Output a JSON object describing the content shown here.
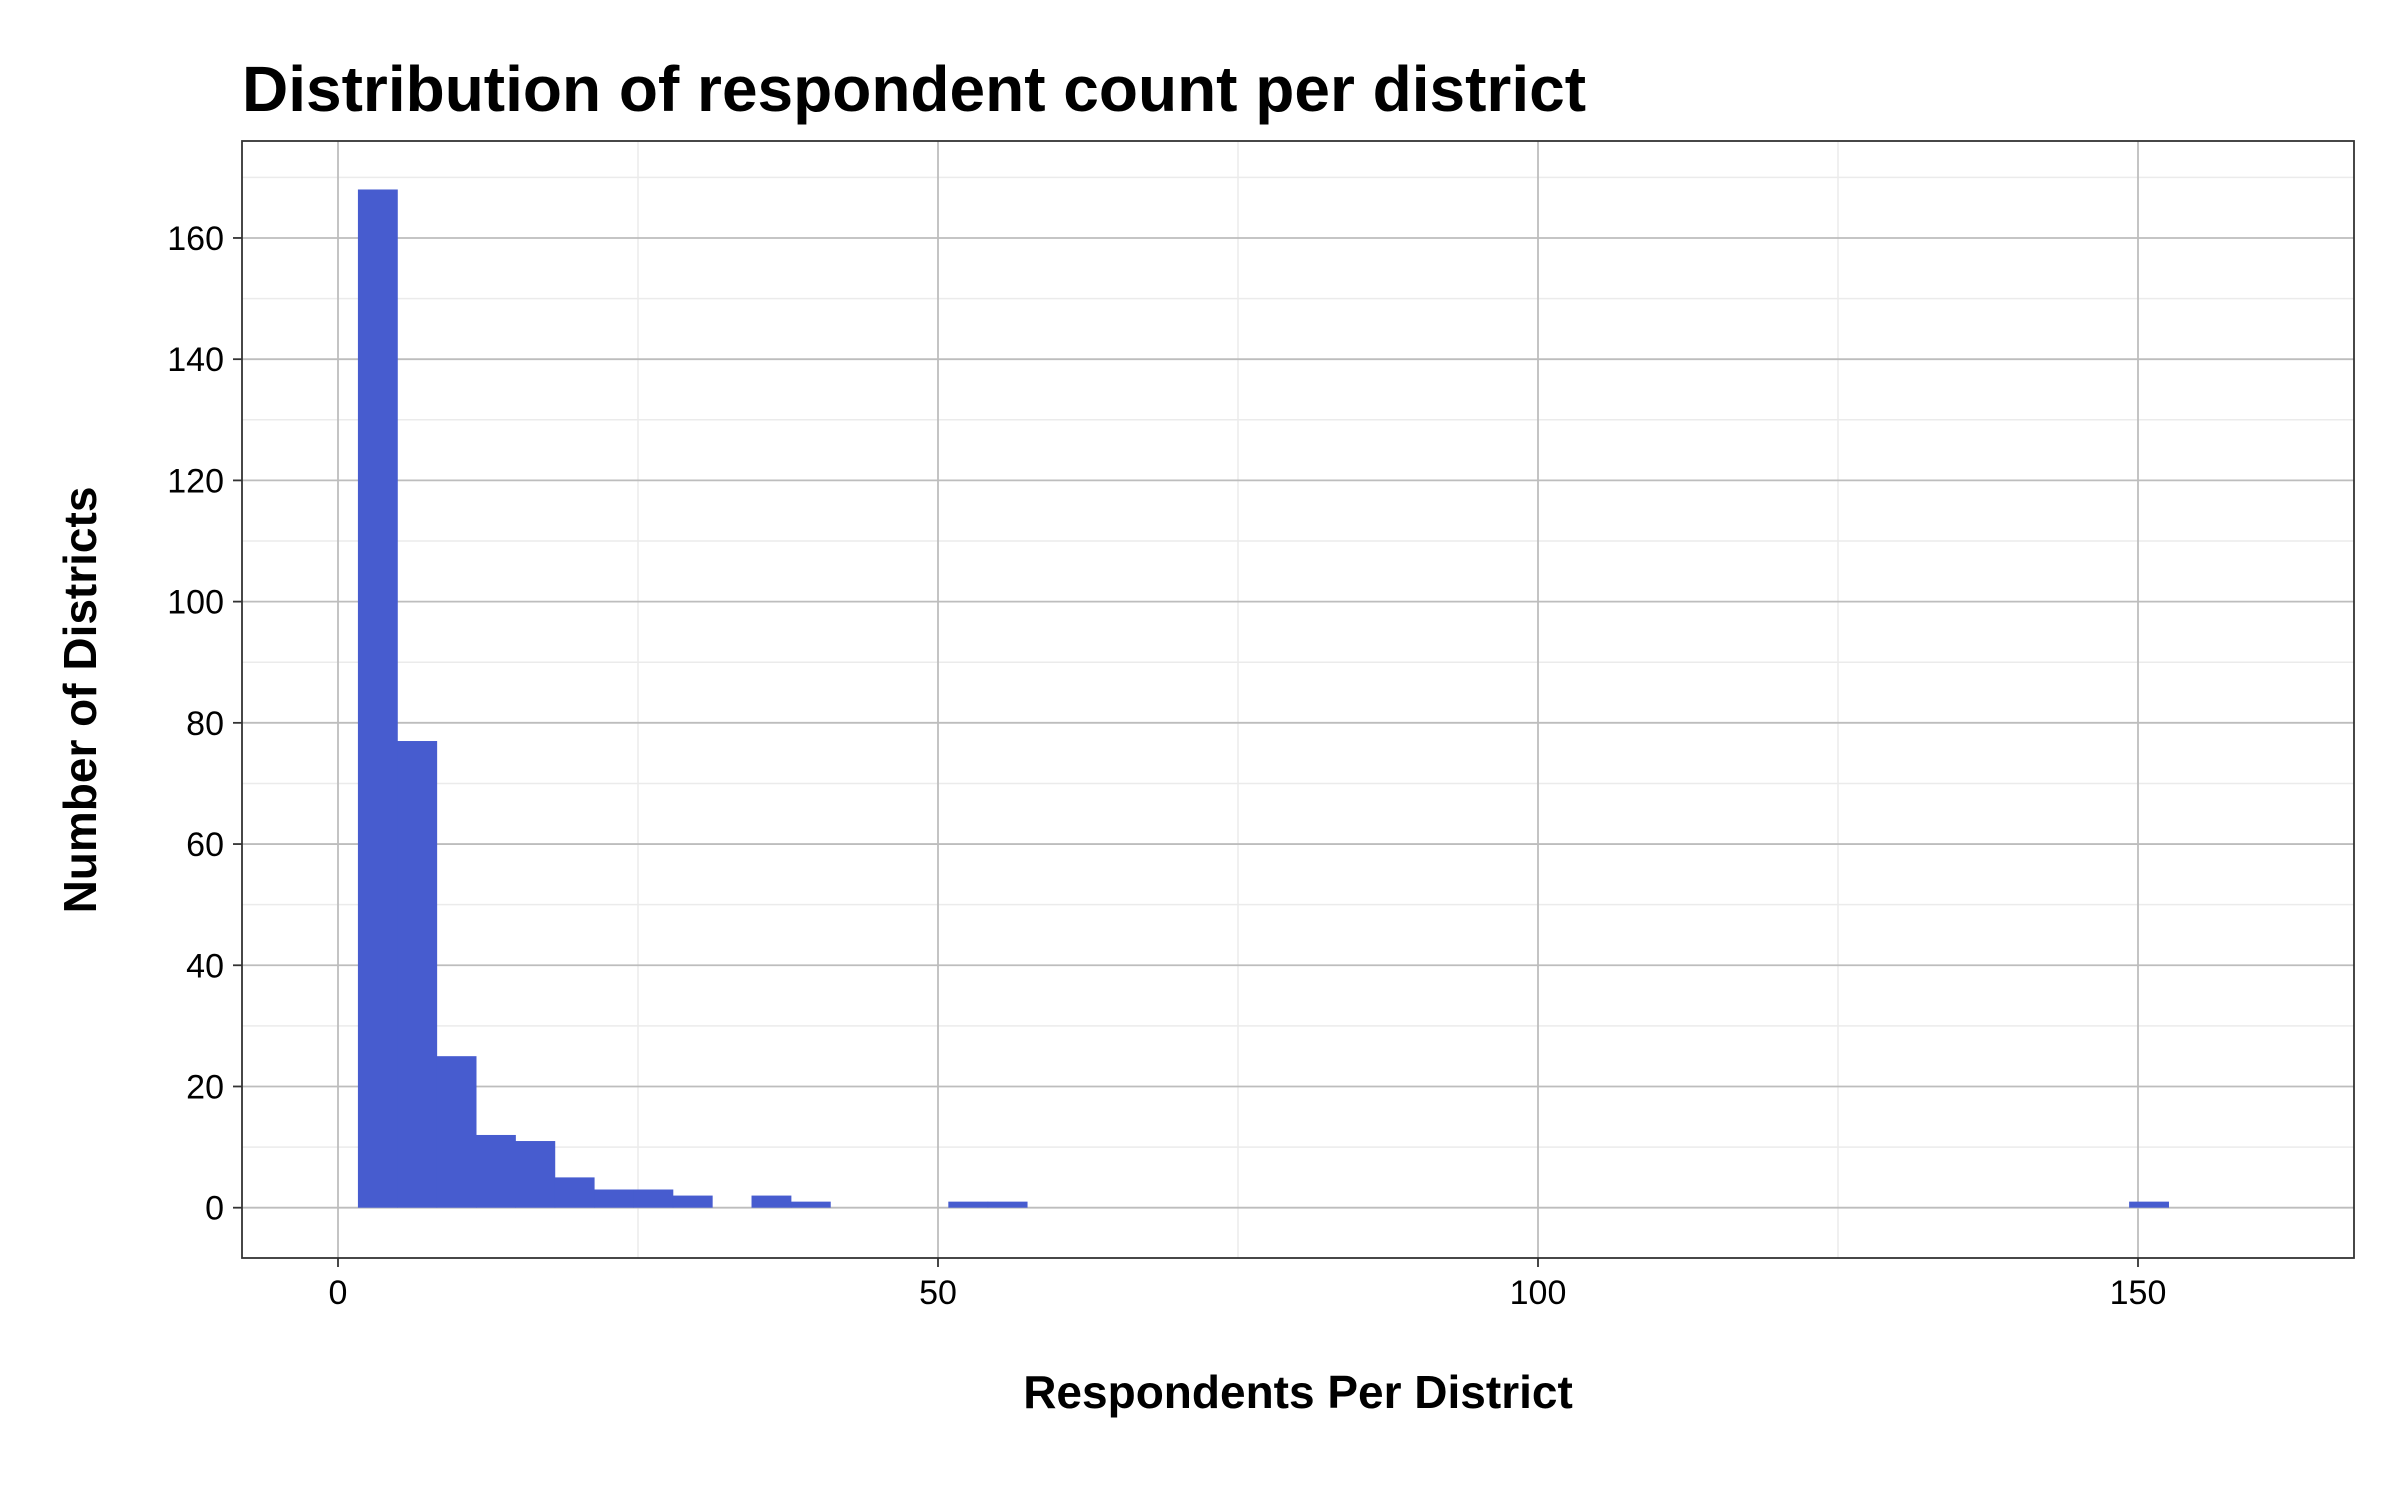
{
  "chart_data": {
    "type": "bar",
    "title": "Distribution of respondent count per district",
    "xlabel": "Respondents Per District",
    "ylabel": "Number of Districts",
    "xlim": [
      -8,
      168
    ],
    "ylim": [
      -8.3,
      176
    ],
    "x_ticks": [
      0,
      50,
      100,
      150
    ],
    "y_ticks": [
      0,
      20,
      40,
      60,
      80,
      100,
      120,
      140,
      160
    ],
    "bin_width": 3.28,
    "bins": [
      {
        "x0": 1.66,
        "x1": 4.94,
        "value": 168
      },
      {
        "x0": 4.94,
        "x1": 8.22,
        "value": 77
      },
      {
        "x0": 8.22,
        "x1": 11.5,
        "value": 25
      },
      {
        "x0": 11.5,
        "x1": 14.78,
        "value": 12
      },
      {
        "x0": 14.78,
        "x1": 18.06,
        "value": 11
      },
      {
        "x0": 18.06,
        "x1": 21.34,
        "value": 5
      },
      {
        "x0": 21.34,
        "x1": 24.62,
        "value": 3
      },
      {
        "x0": 24.62,
        "x1": 27.9,
        "value": 3
      },
      {
        "x0": 27.9,
        "x1": 31.18,
        "value": 2
      },
      {
        "x0": 34.46,
        "x1": 37.74,
        "value": 2
      },
      {
        "x0": 37.74,
        "x1": 41.02,
        "value": 1
      },
      {
        "x0": 50.86,
        "x1": 54.14,
        "value": 1
      },
      {
        "x0": 54.14,
        "x1": 57.42,
        "value": 1
      },
      {
        "x0": 149.26,
        "x1": 152.54,
        "value": 1
      }
    ],
    "bar_color": "#475ccf",
    "grid": true,
    "legend": "none"
  }
}
